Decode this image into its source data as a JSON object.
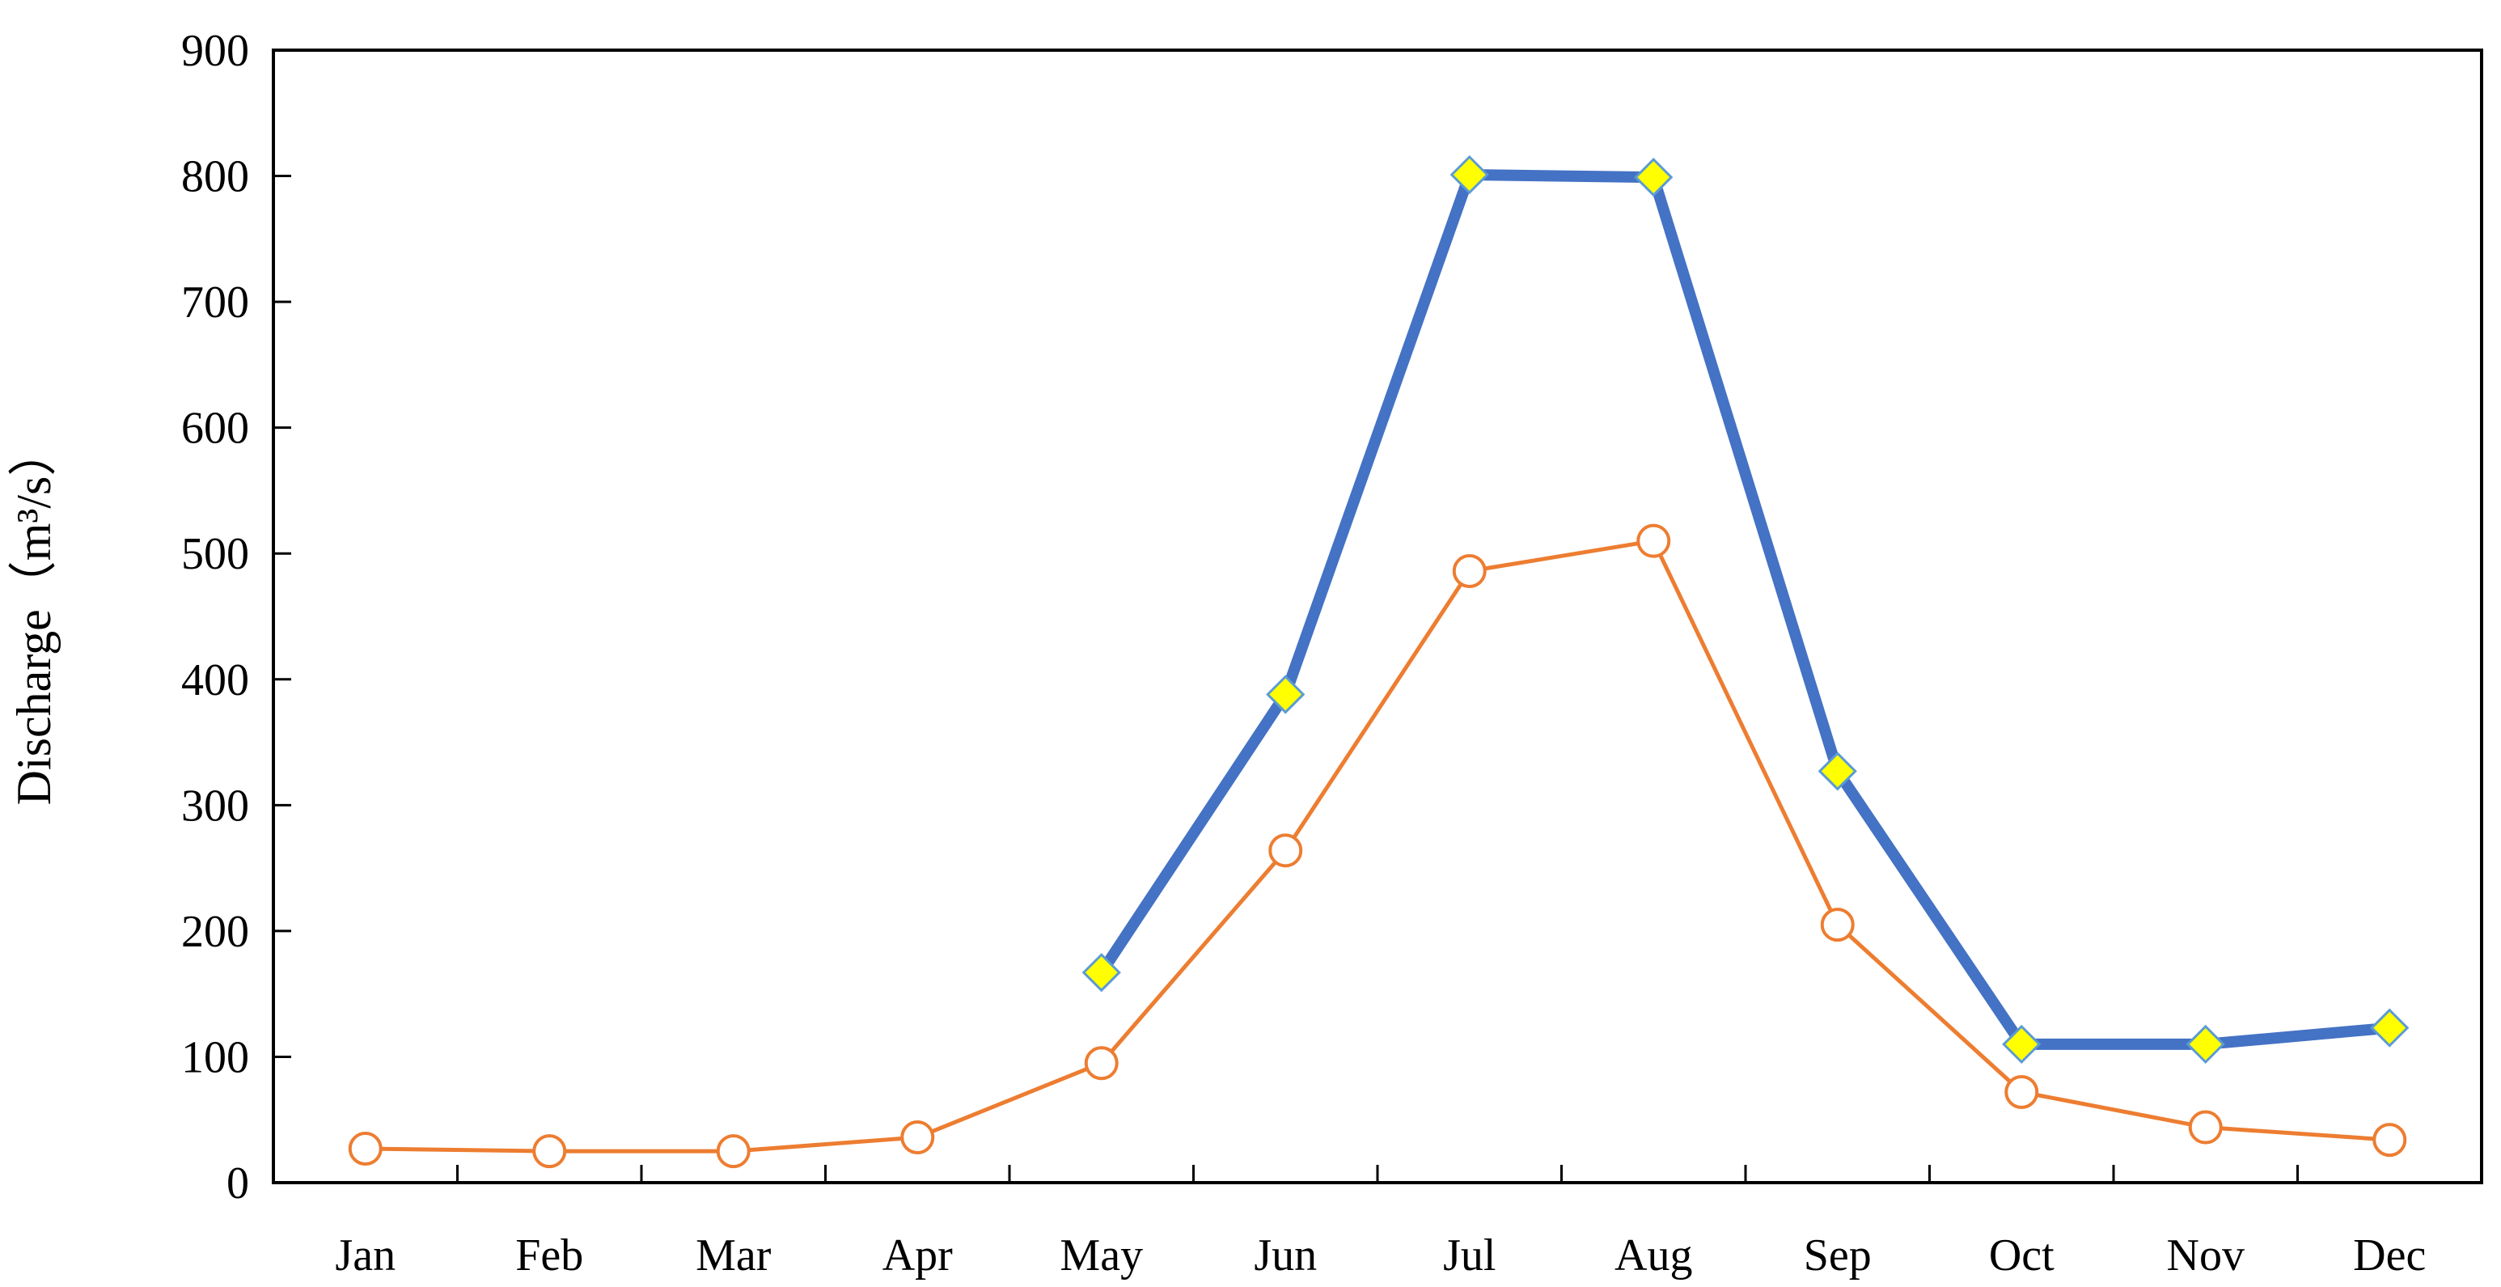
{
  "chart_data": {
    "type": "line",
    "title": "",
    "xlabel": "",
    "ylabel": "Discharge（m³/s）",
    "categories": [
      "Jan",
      "Feb",
      "Mar",
      "Apr",
      "May",
      "Jun",
      "Jul",
      "Aug",
      "Sep",
      "Oct",
      "Nov",
      "Dec"
    ],
    "ylim": [
      0,
      900
    ],
    "yticks": [
      "0",
      "100",
      "200",
      "300",
      "400",
      "500",
      "600",
      "700",
      "800",
      "900"
    ],
    "grid": false,
    "legend": "none",
    "series": [
      {
        "values": [
          null,
          null,
          null,
          null,
          167,
          388,
          801,
          799,
          327,
          110,
          110,
          123
        ],
        "color": "#4472C4",
        "marker": "diamond",
        "marker_fill": "#FFFF00"
      },
      {
        "values": [
          27,
          25,
          25,
          36,
          95,
          264,
          486,
          510,
          205,
          72,
          44,
          34
        ],
        "color": "#ED7D31",
        "marker": "circle",
        "marker_fill": "#FFFFFF"
      }
    ]
  }
}
